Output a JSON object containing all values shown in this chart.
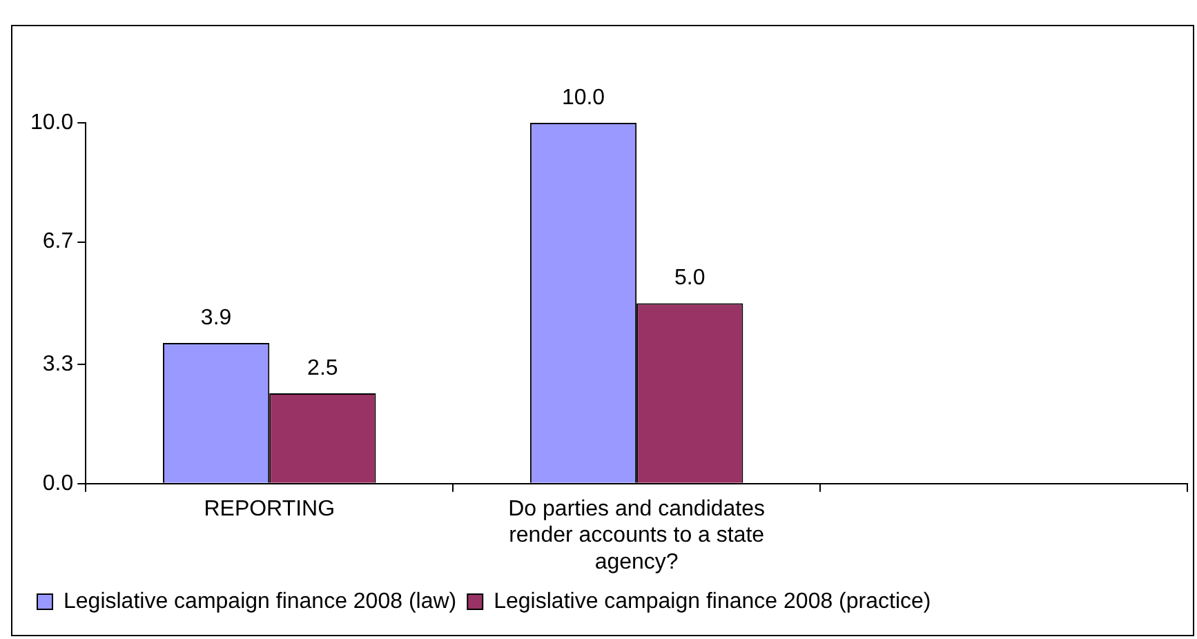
{
  "chart_data": {
    "type": "bar",
    "categories": [
      "REPORTING",
      "Do parties and candidates render accounts to a state agency?",
      null
    ],
    "series": [
      {
        "name": "Legislative campaign finance 2008 (law)",
        "color": "#9999ff",
        "values": [
          3.9,
          10,
          null
        ],
        "value_labels": [
          "3.9",
          "10.0",
          null
        ]
      },
      {
        "name": "Legislative campaign finance 2008 (practice)",
        "color": "#993366",
        "values": [
          2.5,
          5,
          null
        ],
        "value_labels": [
          "2.5",
          "5.0",
          null
        ]
      }
    ],
    "ylim": [
      0,
      10
    ],
    "yticks": [
      {
        "value": 0,
        "label": "0.0"
      },
      {
        "value": 3.3,
        "label": "3.3"
      },
      {
        "value": 6.7,
        "label": "6.7"
      },
      {
        "value": 10,
        "label": "10.0"
      }
    ],
    "grid": false,
    "legend": "bottom left"
  }
}
